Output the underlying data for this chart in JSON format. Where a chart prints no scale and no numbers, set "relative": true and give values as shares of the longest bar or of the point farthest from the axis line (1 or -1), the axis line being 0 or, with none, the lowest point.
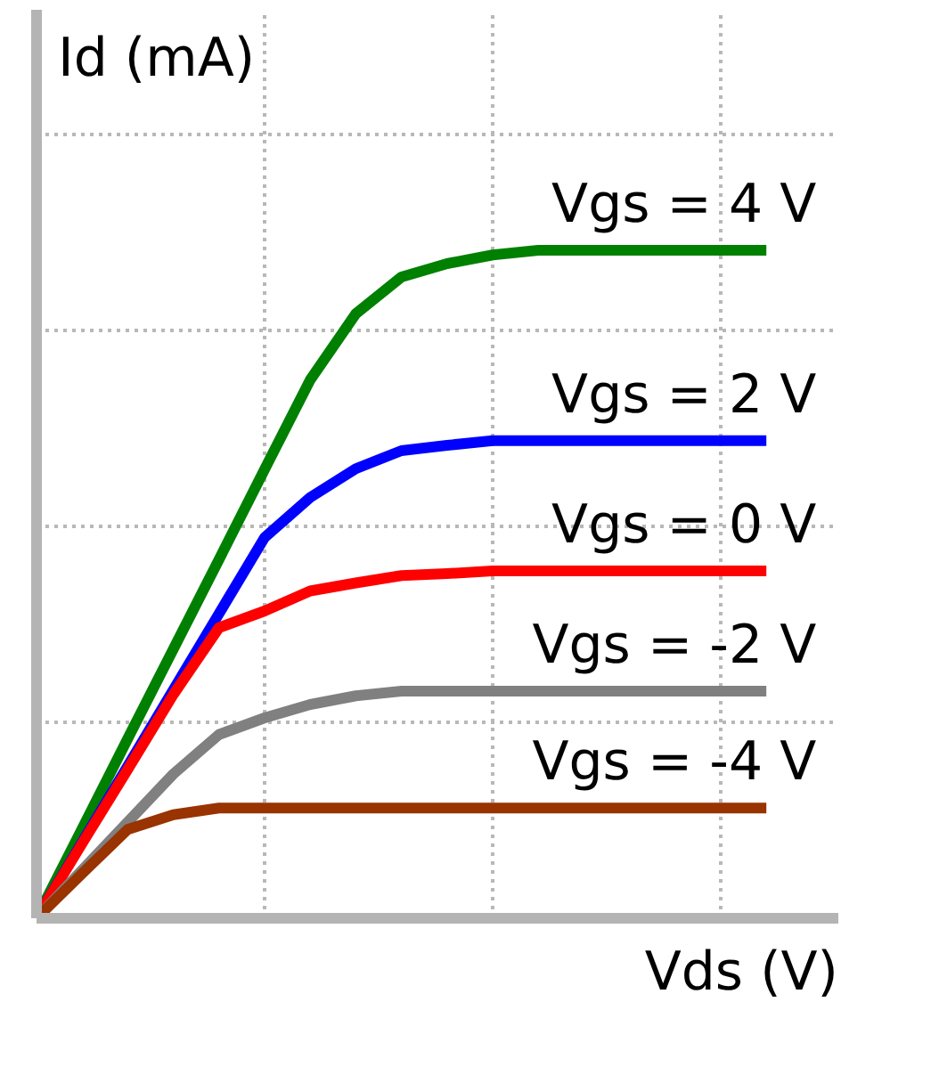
{
  "chart_data": {
    "type": "line",
    "relative": true,
    "xlabel": "Vds (V)",
    "ylabel": "Id (mA)",
    "categories": [
      null,
      null,
      null,
      null,
      null,
      null,
      null,
      null,
      null,
      null,
      null,
      null,
      null,
      null,
      null,
      null,
      null
    ],
    "grid": true,
    "line_style": "solid",
    "series": [
      {
        "name": "Vgs = 4 V",
        "color": "#008000",
        "values": [
          0,
          0.134,
          0.269,
          0.403,
          0.537,
          0.672,
          0.806,
          0.905,
          0.96,
          0.98,
          0.993,
          1,
          1,
          1,
          1,
          1,
          1
        ]
      },
      {
        "name": "Vgs = 2 V",
        "color": "#0000ff",
        "values": [
          0,
          0.114,
          0.228,
          0.342,
          0.456,
          0.57,
          0.63,
          0.673,
          0.7,
          0.708,
          0.715,
          0.715,
          0.715,
          0.715,
          0.715,
          0.715,
          0.715
        ]
      },
      {
        "name": "Vgs = 0 V",
        "color": "#ff0000",
        "values": [
          0,
          0.112,
          0.223,
          0.335,
          0.435,
          0.46,
          0.49,
          0.502,
          0.513,
          0.516,
          0.52,
          0.52,
          0.52,
          0.52,
          0.52,
          0.52,
          0.52
        ]
      },
      {
        "name": "Vgs = -2 V",
        "color": "#808080",
        "values": [
          0,
          0.072,
          0.144,
          0.216,
          0.275,
          0.3,
          0.32,
          0.333,
          0.34,
          0.34,
          0.34,
          0.34,
          0.34,
          0.34,
          0.34,
          0.34,
          0.34
        ]
      },
      {
        "name": "Vgs = -4 V",
        "color": "#993300",
        "values": [
          0,
          0.067,
          0.133,
          0.155,
          0.165,
          0.165,
          0.165,
          0.165,
          0.165,
          0.165,
          0.165,
          0.165,
          0.165,
          0.165,
          0.165,
          0.165,
          0.165
        ]
      }
    ]
  }
}
